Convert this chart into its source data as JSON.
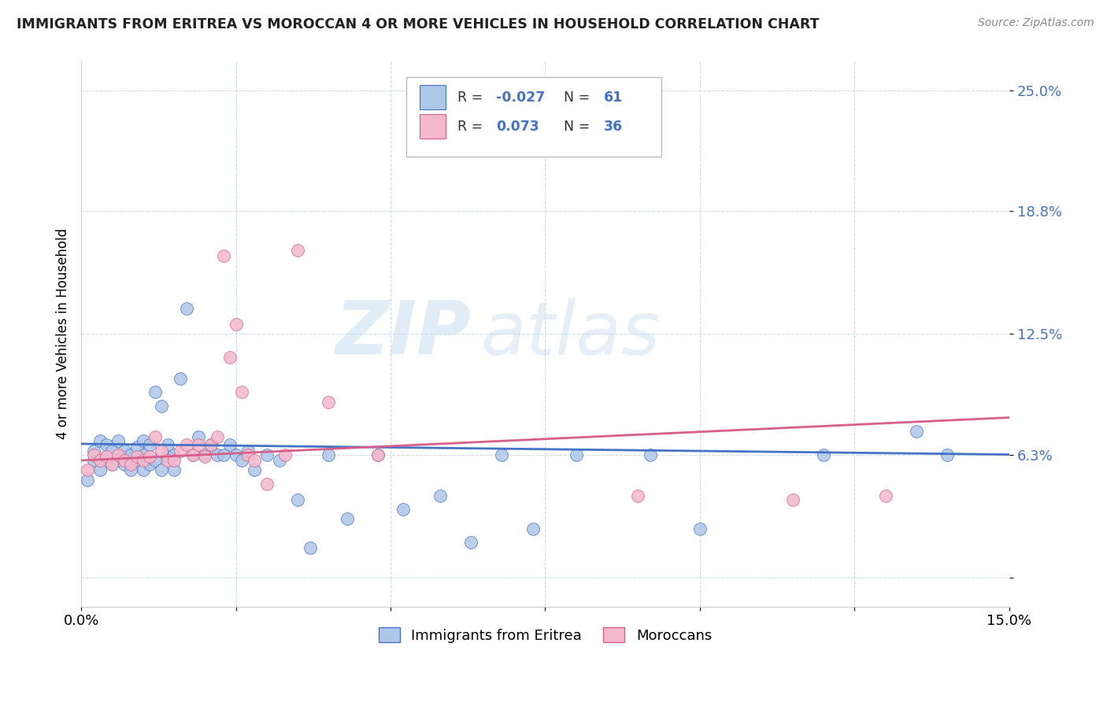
{
  "title": "IMMIGRANTS FROM ERITREA VS MOROCCAN 4 OR MORE VEHICLES IN HOUSEHOLD CORRELATION CHART",
  "source": "Source: ZipAtlas.com",
  "ylabel": "4 or more Vehicles in Household",
  "xmin": 0.0,
  "xmax": 0.15,
  "ymin": -0.015,
  "ymax": 0.265,
  "legend_label1": "Immigrants from Eritrea",
  "legend_label2": "Moroccans",
  "r1": "-0.027",
  "n1": "61",
  "r2": "0.073",
  "n2": "36",
  "color1": "#aec6e8",
  "color2": "#f4b8cc",
  "line_color1": "#4472c4",
  "line_color2": "#d75f8a",
  "label_color": "#4472c4",
  "watermark_zip": "ZIP",
  "watermark_atlas": "atlas",
  "blue_scatter_x": [
    0.001,
    0.002,
    0.002,
    0.003,
    0.003,
    0.004,
    0.004,
    0.005,
    0.005,
    0.006,
    0.006,
    0.007,
    0.007,
    0.008,
    0.008,
    0.009,
    0.009,
    0.01,
    0.01,
    0.01,
    0.011,
    0.011,
    0.012,
    0.012,
    0.013,
    0.013,
    0.014,
    0.014,
    0.015,
    0.015,
    0.016,
    0.017,
    0.018,
    0.019,
    0.02,
    0.021,
    0.022,
    0.023,
    0.024,
    0.025,
    0.026,
    0.027,
    0.028,
    0.03,
    0.032,
    0.035,
    0.037,
    0.04,
    0.043,
    0.048,
    0.052,
    0.058,
    0.063,
    0.068,
    0.073,
    0.08,
    0.092,
    0.1,
    0.12,
    0.135,
    0.14
  ],
  "blue_scatter_y": [
    0.05,
    0.06,
    0.065,
    0.055,
    0.07,
    0.062,
    0.068,
    0.058,
    0.065,
    0.06,
    0.07,
    0.058,
    0.065,
    0.055,
    0.063,
    0.06,
    0.067,
    0.055,
    0.063,
    0.07,
    0.058,
    0.068,
    0.06,
    0.095,
    0.088,
    0.055,
    0.062,
    0.068,
    0.055,
    0.063,
    0.102,
    0.138,
    0.063,
    0.072,
    0.063,
    0.068,
    0.063,
    0.063,
    0.068,
    0.063,
    0.06,
    0.065,
    0.055,
    0.063,
    0.06,
    0.04,
    0.015,
    0.063,
    0.03,
    0.063,
    0.035,
    0.042,
    0.018,
    0.063,
    0.025,
    0.063,
    0.063,
    0.025,
    0.063,
    0.075,
    0.063
  ],
  "pink_scatter_x": [
    0.001,
    0.002,
    0.003,
    0.004,
    0.005,
    0.006,
    0.007,
    0.008,
    0.009,
    0.01,
    0.011,
    0.012,
    0.013,
    0.014,
    0.015,
    0.016,
    0.017,
    0.018,
    0.019,
    0.02,
    0.021,
    0.022,
    0.023,
    0.024,
    0.025,
    0.026,
    0.027,
    0.028,
    0.03,
    0.033,
    0.035,
    0.04,
    0.048,
    0.09,
    0.115,
    0.13
  ],
  "pink_scatter_y": [
    0.055,
    0.063,
    0.06,
    0.062,
    0.058,
    0.063,
    0.06,
    0.058,
    0.062,
    0.06,
    0.062,
    0.072,
    0.065,
    0.06,
    0.06,
    0.065,
    0.068,
    0.063,
    0.068,
    0.062,
    0.068,
    0.072,
    0.165,
    0.113,
    0.13,
    0.095,
    0.063,
    0.06,
    0.048,
    0.063,
    0.168,
    0.09,
    0.063,
    0.042,
    0.04,
    0.042
  ]
}
